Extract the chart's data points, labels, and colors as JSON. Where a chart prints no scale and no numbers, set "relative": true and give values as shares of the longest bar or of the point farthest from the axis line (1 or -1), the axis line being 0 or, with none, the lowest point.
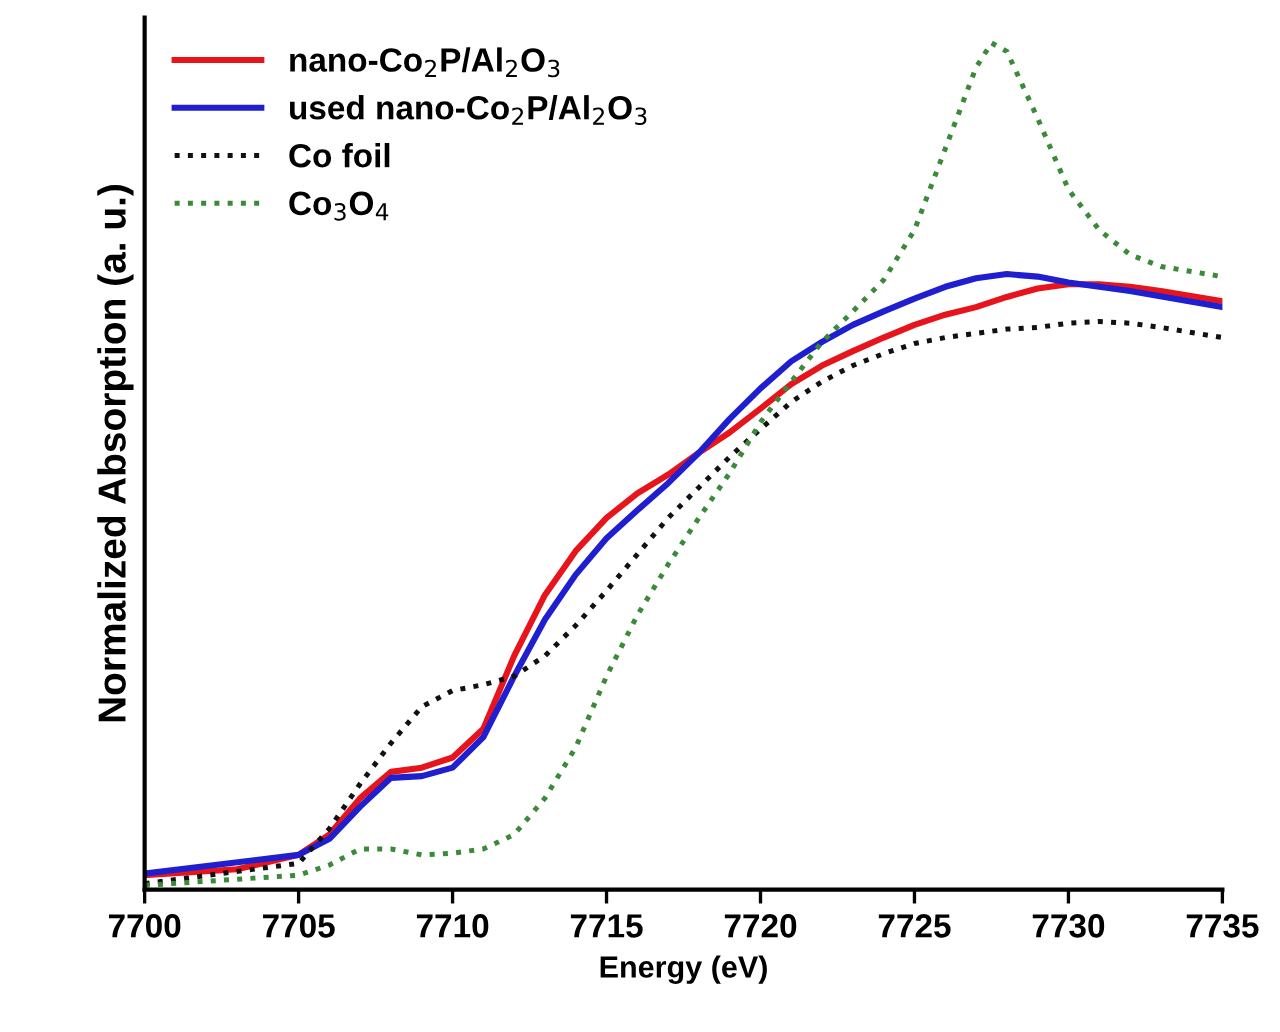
{
  "chart_data": {
    "type": "line",
    "xlabel": "Energy (eV)",
    "ylabel": "Normalized Absorption (a. u.)",
    "relative": true,
    "xlim": [
      7700,
      7735
    ],
    "xticks": [
      7700,
      7705,
      7710,
      7715,
      7720,
      7725,
      7730,
      7735
    ],
    "legend": "top left",
    "grid": false,
    "marker": "none",
    "series": [
      {
        "name": "nano-Co$_{2}$P/Al$_{2}$O$_{3}$",
        "color": "#e8141c",
        "line_style": "solid",
        "x": [
          7700,
          7703,
          7705,
          7706,
          7707,
          7708,
          7709,
          7710,
          7711,
          7712,
          7713,
          7714,
          7715,
          7716,
          7717,
          7718,
          7719,
          7720,
          7721,
          7722,
          7723,
          7724,
          7725,
          7726,
          7727,
          7728,
          7729,
          7730,
          7731,
          7732,
          7733,
          7735
        ],
        "values": [
          0.017,
          0.024,
          0.041,
          0.065,
          0.108,
          0.139,
          0.144,
          0.156,
          0.19,
          0.276,
          0.348,
          0.4,
          0.439,
          0.468,
          0.49,
          0.516,
          0.54,
          0.568,
          0.597,
          0.619,
          0.636,
          0.652,
          0.667,
          0.679,
          0.688,
          0.7,
          0.71,
          0.715,
          0.715,
          0.712,
          0.707,
          0.695
        ]
      },
      {
        "name": "used nano-Co$_{2}$P/Al$_{2}$O$_{3}$",
        "color": "#1f1fd0",
        "line_style": "solid",
        "x": [
          7700,
          7705,
          7706,
          7707,
          7708,
          7709,
          7710,
          7711,
          7712,
          7713,
          7714,
          7715,
          7716,
          7717,
          7718,
          7719,
          7720,
          7721,
          7722,
          7723,
          7724,
          7725,
          7726,
          7727,
          7728,
          7729,
          7730,
          7732,
          7735
        ],
        "values": [
          0.019,
          0.041,
          0.06,
          0.098,
          0.132,
          0.134,
          0.144,
          0.18,
          0.252,
          0.319,
          0.372,
          0.415,
          0.448,
          0.48,
          0.516,
          0.556,
          0.592,
          0.624,
          0.647,
          0.667,
          0.683,
          0.698,
          0.712,
          0.722,
          0.727,
          0.724,
          0.717,
          0.707,
          0.688
        ]
      },
      {
        "name": "Co foil",
        "color": "#111111",
        "line_style": "dotted",
        "x": [
          7700,
          7705,
          7706,
          7707,
          7708,
          7709,
          7710,
          7711,
          7712,
          7713,
          7714,
          7715,
          7716,
          7717,
          7718,
          7719,
          7720,
          7721,
          7722,
          7723,
          7724,
          7725,
          7726,
          7727,
          7728,
          7729,
          7730,
          7731,
          7732,
          7733,
          7735
        ],
        "values": [
          0.007,
          0.031,
          0.072,
          0.125,
          0.173,
          0.216,
          0.235,
          0.242,
          0.252,
          0.276,
          0.312,
          0.353,
          0.396,
          0.439,
          0.475,
          0.511,
          0.544,
          0.576,
          0.6,
          0.619,
          0.633,
          0.645,
          0.652,
          0.657,
          0.662,
          0.664,
          0.669,
          0.671,
          0.669,
          0.664,
          0.652
        ]
      },
      {
        "name": "Co$_{3}$O$_{4}$",
        "color": "#3a8a3a",
        "line_style": "dotted",
        "x": [
          7700,
          7705,
          7706,
          7707,
          7708,
          7709,
          7710,
          7711,
          7712,
          7713,
          7714,
          7715,
          7716,
          7717,
          7718,
          7719,
          7720,
          7721,
          7722,
          7723,
          7724,
          7725,
          7726,
          7727,
          7727.5,
          7728,
          7729,
          7730,
          7731,
          7732,
          7733,
          7735
        ],
        "values": [
          0.005,
          0.017,
          0.029,
          0.048,
          0.048,
          0.041,
          0.043,
          0.048,
          0.065,
          0.108,
          0.168,
          0.252,
          0.324,
          0.384,
          0.439,
          0.492,
          0.552,
          0.6,
          0.647,
          0.683,
          0.72,
          0.779,
          0.875,
          0.971,
          1,
          0.99,
          0.911,
          0.827,
          0.779,
          0.75,
          0.736,
          0.724
        ]
      }
    ]
  }
}
